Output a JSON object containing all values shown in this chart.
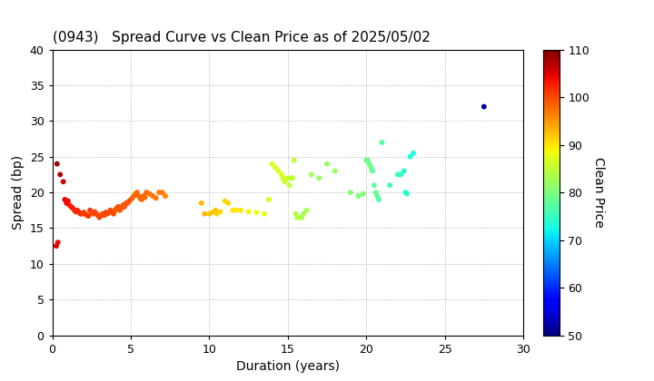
{
  "title": "(0943)   Spread Curve vs Clean Price as of 2025/05/02",
  "xlabel": "Duration (years)",
  "ylabel": "Spread (bp)",
  "colorbar_label": "Clean Price",
  "xlim": [
    0,
    30
  ],
  "ylim": [
    0,
    40
  ],
  "xticks": [
    0,
    5,
    10,
    15,
    20,
    25,
    30
  ],
  "yticks": [
    0,
    5,
    10,
    15,
    20,
    25,
    30,
    35,
    40
  ],
  "colorbar_ticks": [
    50,
    60,
    70,
    80,
    90,
    100,
    110
  ],
  "vmin": 50,
  "vmax": 110,
  "points": [
    [
      0.3,
      24.0,
      108
    ],
    [
      0.5,
      22.5,
      107
    ],
    [
      0.7,
      21.5,
      106
    ],
    [
      0.8,
      19.0,
      105
    ],
    [
      0.9,
      18.5,
      104
    ],
    [
      1.0,
      18.8,
      104
    ],
    [
      1.1,
      18.2,
      103
    ],
    [
      1.2,
      18.0,
      103
    ],
    [
      1.3,
      17.8,
      103
    ],
    [
      1.4,
      17.5,
      102
    ],
    [
      1.5,
      17.3,
      102
    ],
    [
      1.6,
      17.5,
      102
    ],
    [
      1.7,
      17.2,
      102
    ],
    [
      1.8,
      17.0,
      102
    ],
    [
      1.9,
      17.0,
      101
    ],
    [
      2.0,
      17.2,
      101
    ],
    [
      2.1,
      17.0,
      101
    ],
    [
      2.2,
      16.8,
      101
    ],
    [
      2.3,
      16.7,
      101
    ],
    [
      2.4,
      17.5,
      101
    ],
    [
      2.5,
      17.2,
      100
    ],
    [
      2.6,
      17.0,
      100
    ],
    [
      2.7,
      17.3,
      100
    ],
    [
      2.8,
      17.0,
      100
    ],
    [
      2.9,
      16.8,
      100
    ],
    [
      3.0,
      16.5,
      100
    ],
    [
      3.1,
      16.8,
      100
    ],
    [
      3.2,
      17.0,
      100
    ],
    [
      3.3,
      16.8,
      100
    ],
    [
      3.4,
      17.2,
      100
    ],
    [
      3.5,
      17.0,
      100
    ],
    [
      3.6,
      17.2,
      100
    ],
    [
      3.7,
      17.5,
      100
    ],
    [
      3.8,
      17.3,
      100
    ],
    [
      3.9,
      17.0,
      100
    ],
    [
      4.0,
      17.5,
      99
    ],
    [
      4.1,
      17.8,
      99
    ],
    [
      4.2,
      18.0,
      99
    ],
    [
      4.3,
      17.5,
      99
    ],
    [
      4.4,
      17.8,
      99
    ],
    [
      4.5,
      18.2,
      99
    ],
    [
      4.6,
      18.0,
      99
    ],
    [
      4.7,
      18.5,
      99
    ],
    [
      4.8,
      18.5,
      99
    ],
    [
      4.9,
      18.8,
      99
    ],
    [
      5.0,
      19.0,
      99
    ],
    [
      5.1,
      19.2,
      98
    ],
    [
      5.2,
      19.5,
      98
    ],
    [
      5.3,
      19.8,
      98
    ],
    [
      5.4,
      20.0,
      98
    ],
    [
      5.5,
      19.5,
      98
    ],
    [
      5.6,
      19.2,
      98
    ],
    [
      5.7,
      19.0,
      98
    ],
    [
      5.8,
      19.5,
      98
    ],
    [
      5.9,
      19.3,
      98
    ],
    [
      6.0,
      20.0,
      98
    ],
    [
      6.2,
      19.8,
      97
    ],
    [
      6.4,
      19.5,
      97
    ],
    [
      6.6,
      19.2,
      97
    ],
    [
      6.8,
      20.0,
      97
    ],
    [
      7.0,
      20.0,
      97
    ],
    [
      7.2,
      19.5,
      96
    ],
    [
      0.25,
      12.5,
      105
    ],
    [
      0.35,
      13.0,
      104
    ],
    [
      9.5,
      18.5,
      93
    ],
    [
      9.7,
      17.0,
      93
    ],
    [
      10.0,
      17.0,
      92
    ],
    [
      10.2,
      17.2,
      92
    ],
    [
      10.4,
      17.5,
      92
    ],
    [
      10.5,
      17.0,
      91
    ],
    [
      10.7,
      17.3,
      91
    ],
    [
      11.0,
      18.8,
      91
    ],
    [
      11.2,
      18.5,
      91
    ],
    [
      11.5,
      17.5,
      90
    ],
    [
      11.7,
      17.5,
      90
    ],
    [
      12.0,
      17.5,
      90
    ],
    [
      12.5,
      17.3,
      89
    ],
    [
      13.0,
      17.2,
      88
    ],
    [
      13.5,
      17.0,
      88
    ],
    [
      13.8,
      19.0,
      87
    ],
    [
      14.0,
      24.0,
      87
    ],
    [
      14.2,
      23.5,
      87
    ],
    [
      14.4,
      23.0,
      87
    ],
    [
      14.6,
      22.5,
      87
    ],
    [
      14.7,
      22.0,
      86
    ],
    [
      14.8,
      21.5,
      86
    ],
    [
      15.0,
      22.0,
      86
    ],
    [
      15.1,
      21.0,
      85
    ],
    [
      15.2,
      22.0,
      85
    ],
    [
      15.3,
      22.0,
      85
    ],
    [
      15.4,
      24.5,
      85
    ],
    [
      15.5,
      17.0,
      84
    ],
    [
      15.6,
      16.5,
      84
    ],
    [
      15.7,
      16.5,
      84
    ],
    [
      15.8,
      16.5,
      84
    ],
    [
      15.9,
      16.5,
      83
    ],
    [
      16.0,
      17.0,
      83
    ],
    [
      16.2,
      17.5,
      83
    ],
    [
      16.5,
      22.5,
      83
    ],
    [
      17.0,
      22.0,
      82
    ],
    [
      17.5,
      24.0,
      82
    ],
    [
      18.0,
      23.0,
      82
    ],
    [
      19.0,
      20.0,
      81
    ],
    [
      19.5,
      19.5,
      80
    ],
    [
      20.0,
      24.5,
      79
    ],
    [
      20.1,
      24.5,
      79
    ],
    [
      20.2,
      24.0,
      79
    ],
    [
      20.3,
      23.5,
      79
    ],
    [
      20.4,
      23.0,
      78
    ],
    [
      20.5,
      21.0,
      78
    ],
    [
      20.6,
      20.0,
      78
    ],
    [
      20.7,
      19.5,
      78
    ],
    [
      20.8,
      19.0,
      77
    ],
    [
      21.0,
      27.0,
      77
    ],
    [
      21.5,
      21.0,
      76
    ],
    [
      22.0,
      22.5,
      75
    ],
    [
      22.2,
      22.5,
      75
    ],
    [
      22.4,
      23.0,
      74
    ],
    [
      22.5,
      20.0,
      74
    ],
    [
      22.6,
      19.8,
      74
    ],
    [
      22.8,
      25.0,
      73
    ],
    [
      23.0,
      25.5,
      73
    ],
    [
      27.5,
      32.0,
      52
    ],
    [
      19.8,
      19.8,
      80
    ]
  ],
  "marker_size": 18,
  "background_color": "#ffffff",
  "grid_color": "#888888",
  "title_fontsize": 11,
  "label_fontsize": 10,
  "tick_fontsize": 9
}
